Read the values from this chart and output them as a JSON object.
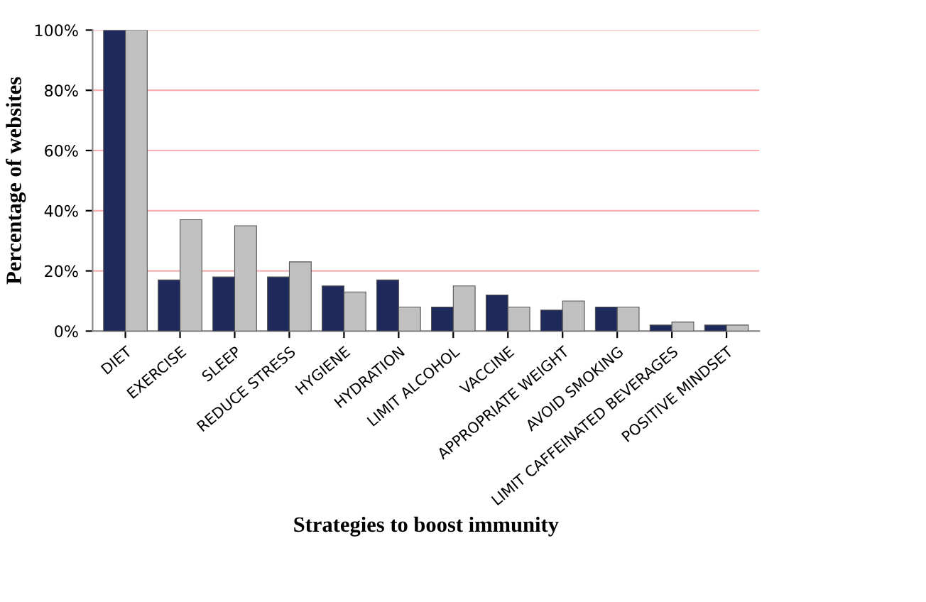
{
  "chart_data": {
    "type": "bar",
    "xlabel": "Strategies to boost immunity",
    "ylabel": "Percentage of websites",
    "categories": [
      "DIET",
      "EXERCISE",
      "SLEEP",
      "REDUCE STRESS",
      "HYGIENE",
      "HYDRATION",
      "LIMIT ALCOHOL",
      "VACCINE",
      "APPROPRIATE WEIGHT",
      "AVOID SMOKING",
      "LIMIT CAFFEINATED BEVERAGES",
      "POSITIVE MINDSET"
    ],
    "series": [
      {
        "color": "#1f2a5c",
        "values": [
          100,
          17,
          18,
          18,
          15,
          17,
          8,
          12,
          7,
          8,
          2,
          2
        ]
      },
      {
        "color": "#c0c0c0",
        "values": [
          100,
          37,
          35,
          23,
          13,
          8,
          15,
          8,
          10,
          8,
          3,
          2
        ]
      }
    ],
    "ylim": [
      0,
      100
    ],
    "yticks": [
      {
        "value": 0,
        "label": "0%"
      },
      {
        "value": 20,
        "label": "20%"
      },
      {
        "value": 40,
        "label": "40%"
      },
      {
        "value": 60,
        "label": "60%"
      },
      {
        "value": 80,
        "label": "80%"
      },
      {
        "value": 100,
        "label": "100%"
      }
    ],
    "grid": "y"
  }
}
